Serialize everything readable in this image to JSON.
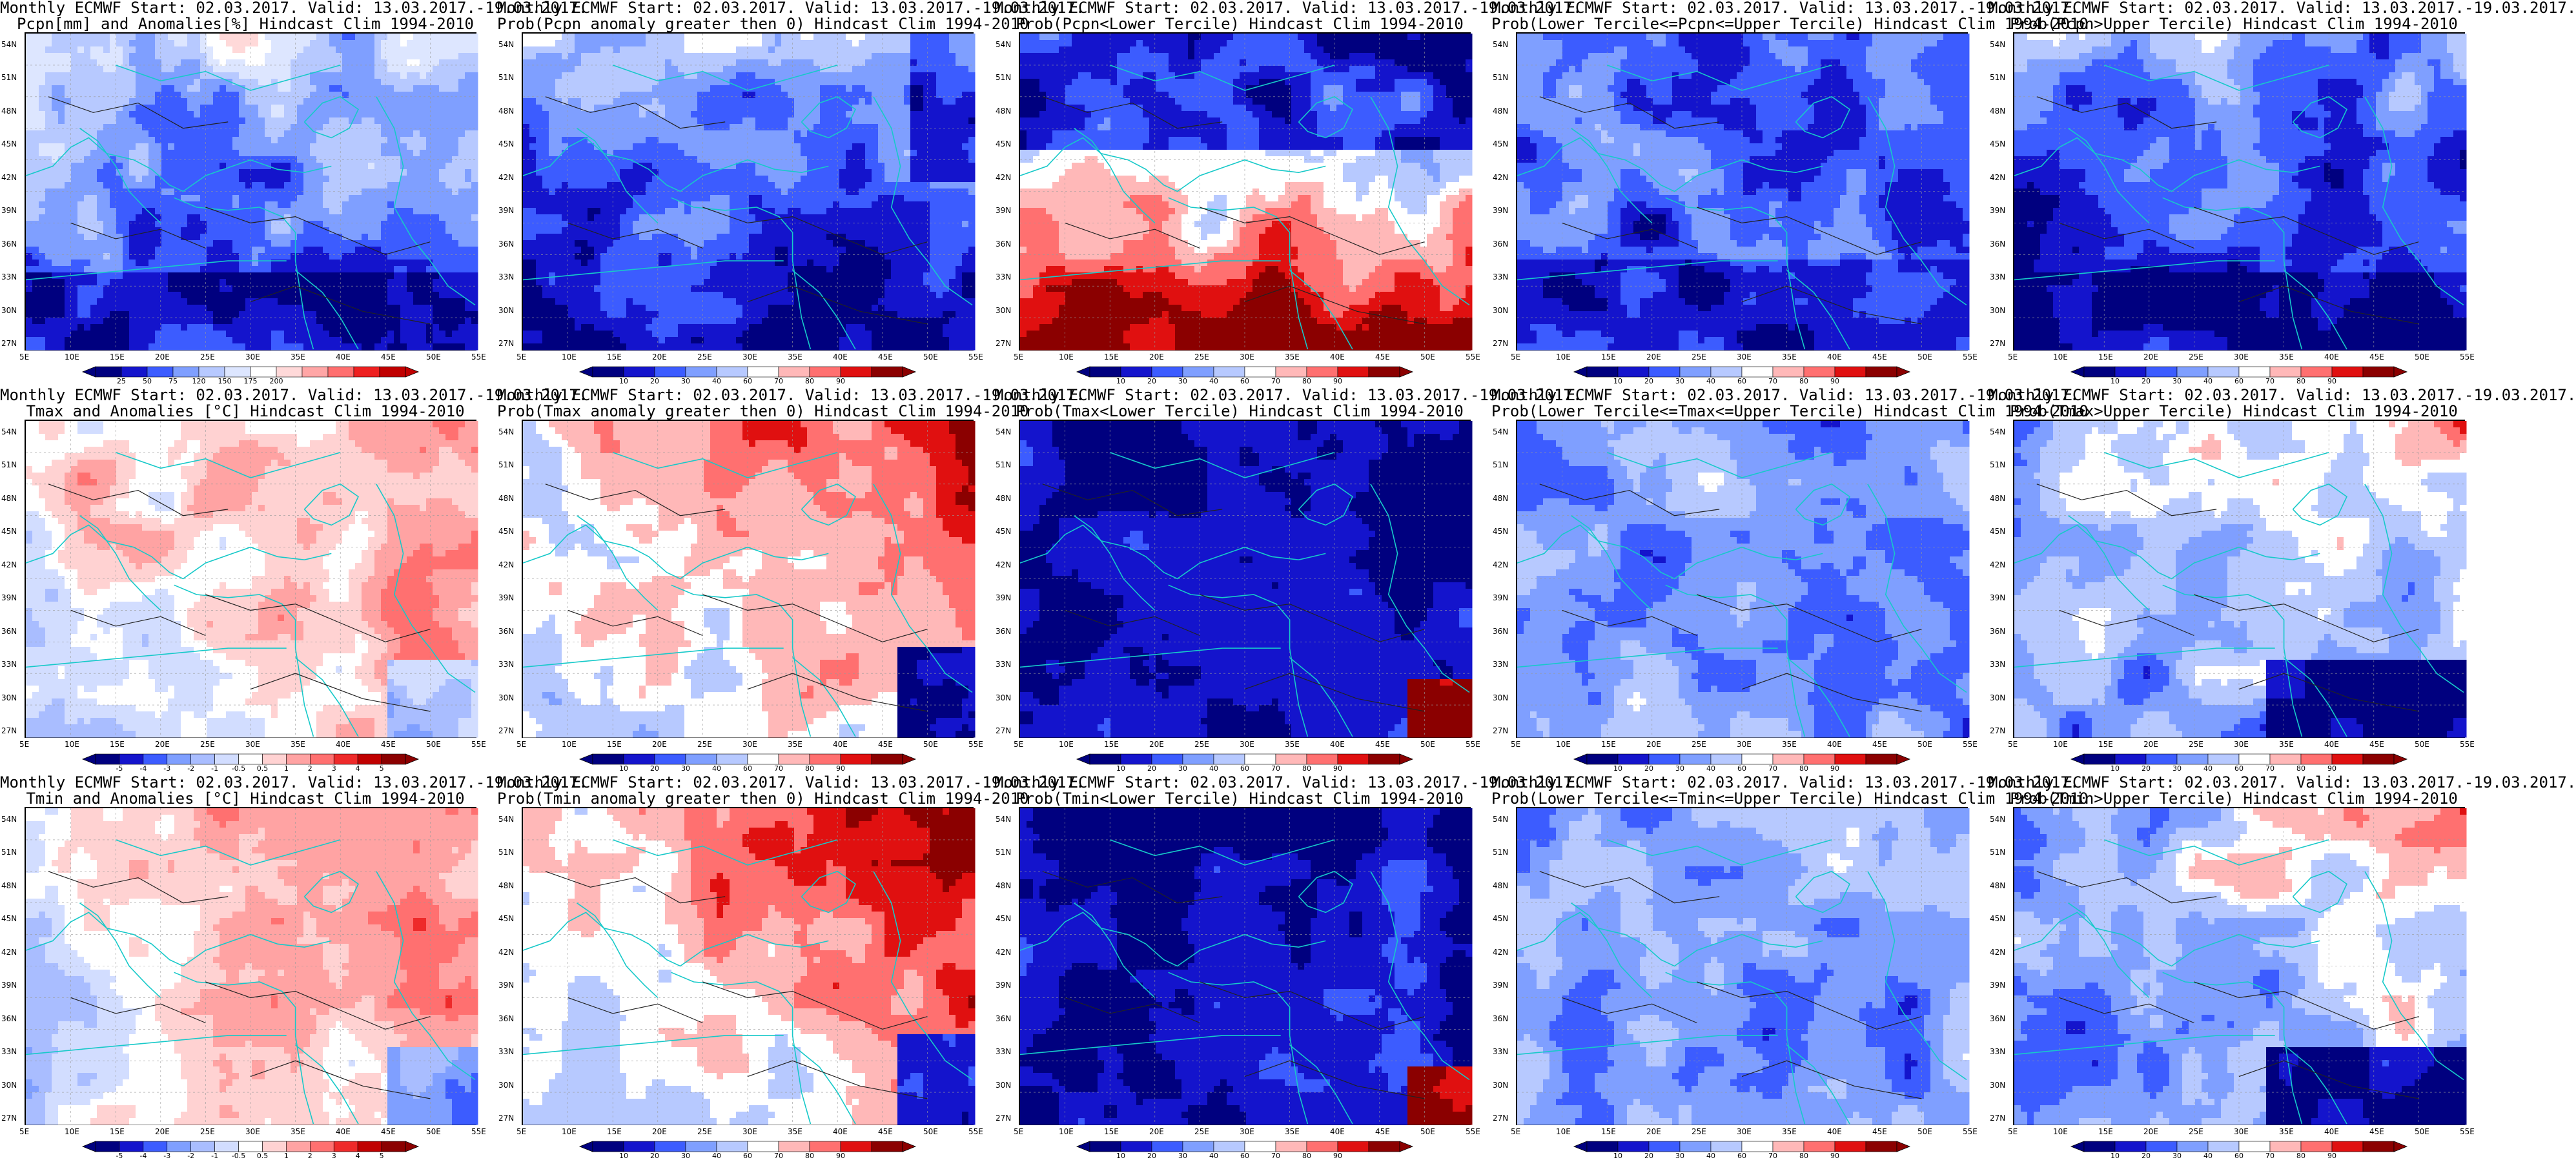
{
  "header": "Monthly ECMWF Start: 02.03.2017. Valid: 13.03.2017.-19.03.2017.",
  "lat_labels": [
    "54N",
    "51N",
    "48N",
    "45N",
    "42N",
    "39N",
    "36N",
    "33N",
    "30N",
    "27N"
  ],
  "lon_labels": [
    "5E",
    "10E",
    "15E",
    "20E",
    "25E",
    "30E",
    "35E",
    "40E",
    "45E",
    "50E",
    "55E"
  ],
  "colorbars": {
    "anom_pcpn": {
      "ticks": [
        "25",
        "50",
        "75",
        "120",
        "150",
        "175",
        "200"
      ],
      "colors": [
        "#00007f",
        "#1414cc",
        "#3c5cff",
        "#7f9fff",
        "#b7c9ff",
        "#dde6ff",
        "#ffffff",
        "#ffd9d9",
        "#ffa6a6",
        "#ff6f6f",
        "#ee2020",
        "#c00000"
      ]
    },
    "prob": {
      "ticks": [
        "10",
        "20",
        "30",
        "40",
        "60",
        "70",
        "80",
        "90"
      ],
      "colors": [
        "#00007f",
        "#1414cc",
        "#3c5cff",
        "#7f9fff",
        "#b7c9ff",
        "#ffffff",
        "#ffb8b8",
        "#ff7070",
        "#e01010",
        "#8b0000"
      ]
    },
    "anom_temp": {
      "ticks": [
        "-5",
        "-4",
        "-3",
        "-2",
        "-1",
        "-0.5",
        "0.5",
        "1",
        "2",
        "3",
        "4",
        "5"
      ],
      "colors": [
        "#00007f",
        "#1414cc",
        "#3c5cff",
        "#7f9fff",
        "#a9bdff",
        "#d2ddff",
        "#ffffff",
        "#ffd2d2",
        "#ffa3a3",
        "#ff7070",
        "#ee2a2a",
        "#c00000",
        "#8b0000"
      ]
    }
  },
  "panels": [
    {
      "id": "r1c1",
      "title1": "Monthly ECMWF Start: 02.03.2017. Valid: 13.03.2017.-19.03.2017.",
      "title2": "Pcpn[mm] and Anomalies[%] Hindcast Clim 1994-2010",
      "cbar": "anom_pcpn",
      "pattern": "pcpn_anom"
    },
    {
      "id": "r1c2",
      "title1": "Monthly ECMWF Start: 02.03.2017. Valid: 13.03.2017.-19.03.2017.",
      "title2": "Prob(Pcpn anomaly greater then 0) Hindcast Clim 1994-2010",
      "cbar": "prob",
      "pattern": "pcpn_prob"
    },
    {
      "id": "r1c3",
      "title1": "Monthly ECMWF Start: 02.03.2017. Valid: 13.03.2017.-19.03.2017.",
      "title2": "Prob(Pcpn<Lower Tercile) Hindcast Clim 1994-2010",
      "cbar": "prob",
      "pattern": "pcpn_low"
    },
    {
      "id": "r1c4",
      "title1": "Monthly ECMWF Start: 02.03.2017. Valid: 13.03.2017.-19.03.2017.",
      "title2": "Prob(Lower Tercile<=Pcpn<=Upper Tercile) Hindcast Clim 1994-2010",
      "cbar": "prob",
      "pattern": "pcpn_mid"
    },
    {
      "id": "r1c5",
      "title1": "Monthly ECMWF Start: 02.03.2017. Valid: 13.03.2017.-19.03.2017.",
      "title2": "Prob(Pcpn>Upper Tercile) Hindcast Clim 1994-2010",
      "cbar": "prob",
      "pattern": "pcpn_up"
    },
    {
      "id": "r2c1",
      "title1": "Monthly ECMWF Start: 02.03.2017. Valid: 13.03.2017.-19.03.2017.",
      "title2": "Tmax and Anomalies [°C] Hindcast Clim 1994-2010",
      "cbar": "anom_temp",
      "pattern": "warm_light"
    },
    {
      "id": "r2c2",
      "title1": "Monthly ECMWF Start: 02.03.2017. Valid: 13.03.2017.-19.03.2017.",
      "title2": "Prob(Tmax anomaly greater then 0) Hindcast Clim 1994-2010",
      "cbar": "prob",
      "pattern": "warm"
    },
    {
      "id": "r2c3",
      "title1": "Monthly ECMWF Start: 02.03.2017. Valid: 13.03.2017.-19.03.2017.",
      "title2": "Prob(Tmax<Lower Tercile) Hindcast Clim 1994-2010",
      "cbar": "prob",
      "pattern": "cold"
    },
    {
      "id": "r2c4",
      "title1": "Monthly ECMWF Start: 02.03.2017. Valid: 13.03.2017.-19.03.2017.",
      "title2": "Prob(Lower Tercile<=Tmax<=Upper Tercile) Hindcast Clim 1994-2010",
      "cbar": "prob",
      "pattern": "mid"
    },
    {
      "id": "r2c5",
      "title1": "Monthly ECMWF Start: 02.03.2017. Valid: 13.03.2017.-19.03.2017.",
      "title2": "Prob(Tmax>Upper Tercile) Hindcast Clim 1994-2010",
      "cbar": "prob",
      "pattern": "upper"
    },
    {
      "id": "r3c1",
      "title1": "Monthly ECMWF Start: 02.03.2017. Valid: 13.03.2017.-19.03.2017.",
      "title2": "Tmin and Anomalies [°C] Hindcast Clim 1994-2010",
      "cbar": "anom_temp",
      "pattern": "warm_light"
    },
    {
      "id": "r3c2",
      "title1": "Monthly ECMWF Start: 02.03.2017. Valid: 13.03.2017.-19.03.2017.",
      "title2": "Prob(Tmin anomaly greater then 0) Hindcast Clim 1994-2010",
      "cbar": "prob",
      "pattern": "warm"
    },
    {
      "id": "r3c3",
      "title1": "Monthly ECMWF Start: 02.03.2017. Valid: 13.03.2017.-19.03.2017.",
      "title2": "Prob(Tmin<Lower Tercile) Hindcast Clim 1994-2010",
      "cbar": "prob",
      "pattern": "cold"
    },
    {
      "id": "r3c4",
      "title1": "Monthly ECMWF Start: 02.03.2017. Valid: 13.03.2017.-19.03.2017.",
      "title2": "Prob(Lower Tercile<=Tmin<=Upper Tercile) Hindcast Clim 1994-2010",
      "cbar": "prob",
      "pattern": "mid"
    },
    {
      "id": "r3c5",
      "title1": "Monthly ECMWF Start: 02.03.2017. Valid: 13.03.2017.-19.03.2017.",
      "title2": "Prob(Tmin>Upper Tercile) Hindcast Clim 1994-2010",
      "cbar": "prob",
      "pattern": "upper"
    }
  ]
}
